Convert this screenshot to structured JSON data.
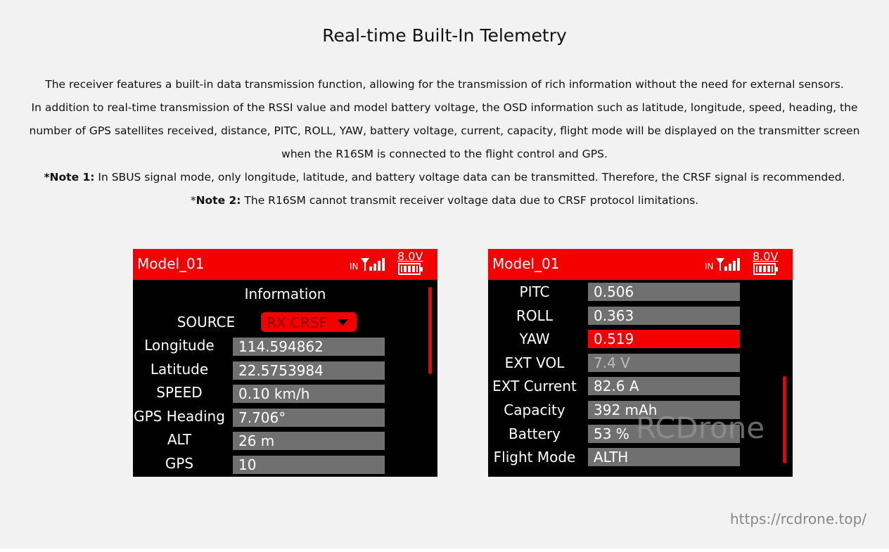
{
  "title": "Real-time Built-In Telemetry",
  "paragraphs": [
    "The receiver features a built-in data transmission function, allowing for the transmission of rich information without the need for external sensors.",
    "In addition to real-time transmission of the RSSI value and model battery voltage, the OSD information such as latitude, longitude, speed, heading, the number of GPS satellites received, distance, PITC, ROLL, YAW, battery voltage, current, capacity, flight mode will be displayed on the transmitter screen when the R16SM is connected to the flight control and GPS."
  ],
  "note1": {
    "label": "*Note 1:",
    "text": " In SBUS signal mode, only longitude, latitude, and battery voltage data can be transmitted. Therefore, the CRSF signal is recommended."
  },
  "note2": {
    "prefix": "*",
    "label": "Note 2:",
    "text": " The R16SM cannot transmit receiver voltage data due to CRSF protocol limitations."
  },
  "colors": {
    "accent": "#f40000",
    "field": "#707070",
    "screen": "#000000"
  },
  "screen1": {
    "model": "Model_01",
    "signal_prefix": "IN",
    "voltage": "8.0V",
    "heading": "Information",
    "source_label": "SOURCE",
    "source_value": "RX  CRSF",
    "rows": [
      {
        "label": "Longitude",
        "value": "114.594862"
      },
      {
        "label": "Latitude",
        "value": "22.5753984"
      },
      {
        "label": "SPEED",
        "value": "0.10  km/h"
      },
      {
        "label": "GPS Heading",
        "value": "7.706°"
      },
      {
        "label": "ALT",
        "value": "26 m"
      },
      {
        "label": "GPS",
        "value": "10"
      }
    ]
  },
  "screen2": {
    "model": "Model_01",
    "signal_prefix": "IN",
    "voltage": "8.0V",
    "rows": [
      {
        "label": "PITC",
        "value": "0.506"
      },
      {
        "label": "ROLL",
        "value": "0.363"
      },
      {
        "label": "YAW",
        "value": "0.519",
        "selected": true
      },
      {
        "label": "EXT  VOL",
        "value": "7.4 V"
      },
      {
        "label": "EXT  Current",
        "value": "82.6 A"
      },
      {
        "label": "Capacity",
        "value": "392 mAh"
      },
      {
        "label": "Battery",
        "value": "53 %"
      },
      {
        "label": "Flight Mode",
        "value": "ALTH"
      }
    ],
    "watermark": "RCDrone"
  },
  "url": "https://rcdrone.top/"
}
